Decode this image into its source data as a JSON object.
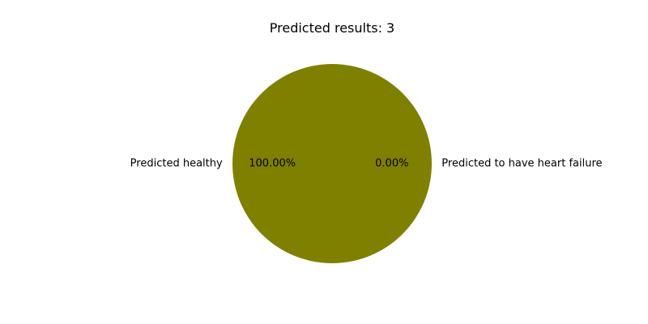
{
  "chart_data": {
    "type": "pie",
    "title": "Predicted results: 3",
    "slices": [
      {
        "label": "Predicted to have heart failure",
        "value": 0.0,
        "pct_label": "0.00%",
        "color": "#c0c0c0"
      },
      {
        "label": "Predicted healthy",
        "value": 100.0,
        "pct_label": "100.00%",
        "color": "#808000"
      }
    ],
    "legend": "none"
  }
}
